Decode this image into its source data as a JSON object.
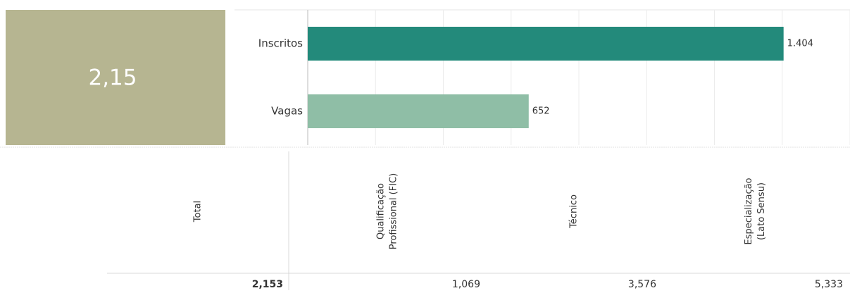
{
  "kpi": {
    "value": "2,15"
  },
  "chart_data": {
    "type": "bar",
    "orientation": "horizontal",
    "categories": [
      "Inscritos",
      "Vagas"
    ],
    "values": [
      1404,
      652
    ],
    "value_labels": [
      "1.404",
      "652"
    ],
    "colors": [
      "#238a7b",
      "#8fbea6"
    ],
    "xlim": [
      0,
      1600
    ],
    "xticks": [
      0,
      200,
      400,
      600,
      800,
      1000,
      1200,
      1400,
      1600
    ],
    "grid": true
  },
  "table": {
    "headers": [
      [
        "Total"
      ],
      [
        "Qualificação",
        "Profissional (FIC)"
      ],
      [
        "Técnico"
      ],
      [
        "Especialização",
        "(Lato Sensu)"
      ]
    ],
    "values": [
      "2,153",
      "1,069",
      "3,576",
      "5,333"
    ]
  }
}
